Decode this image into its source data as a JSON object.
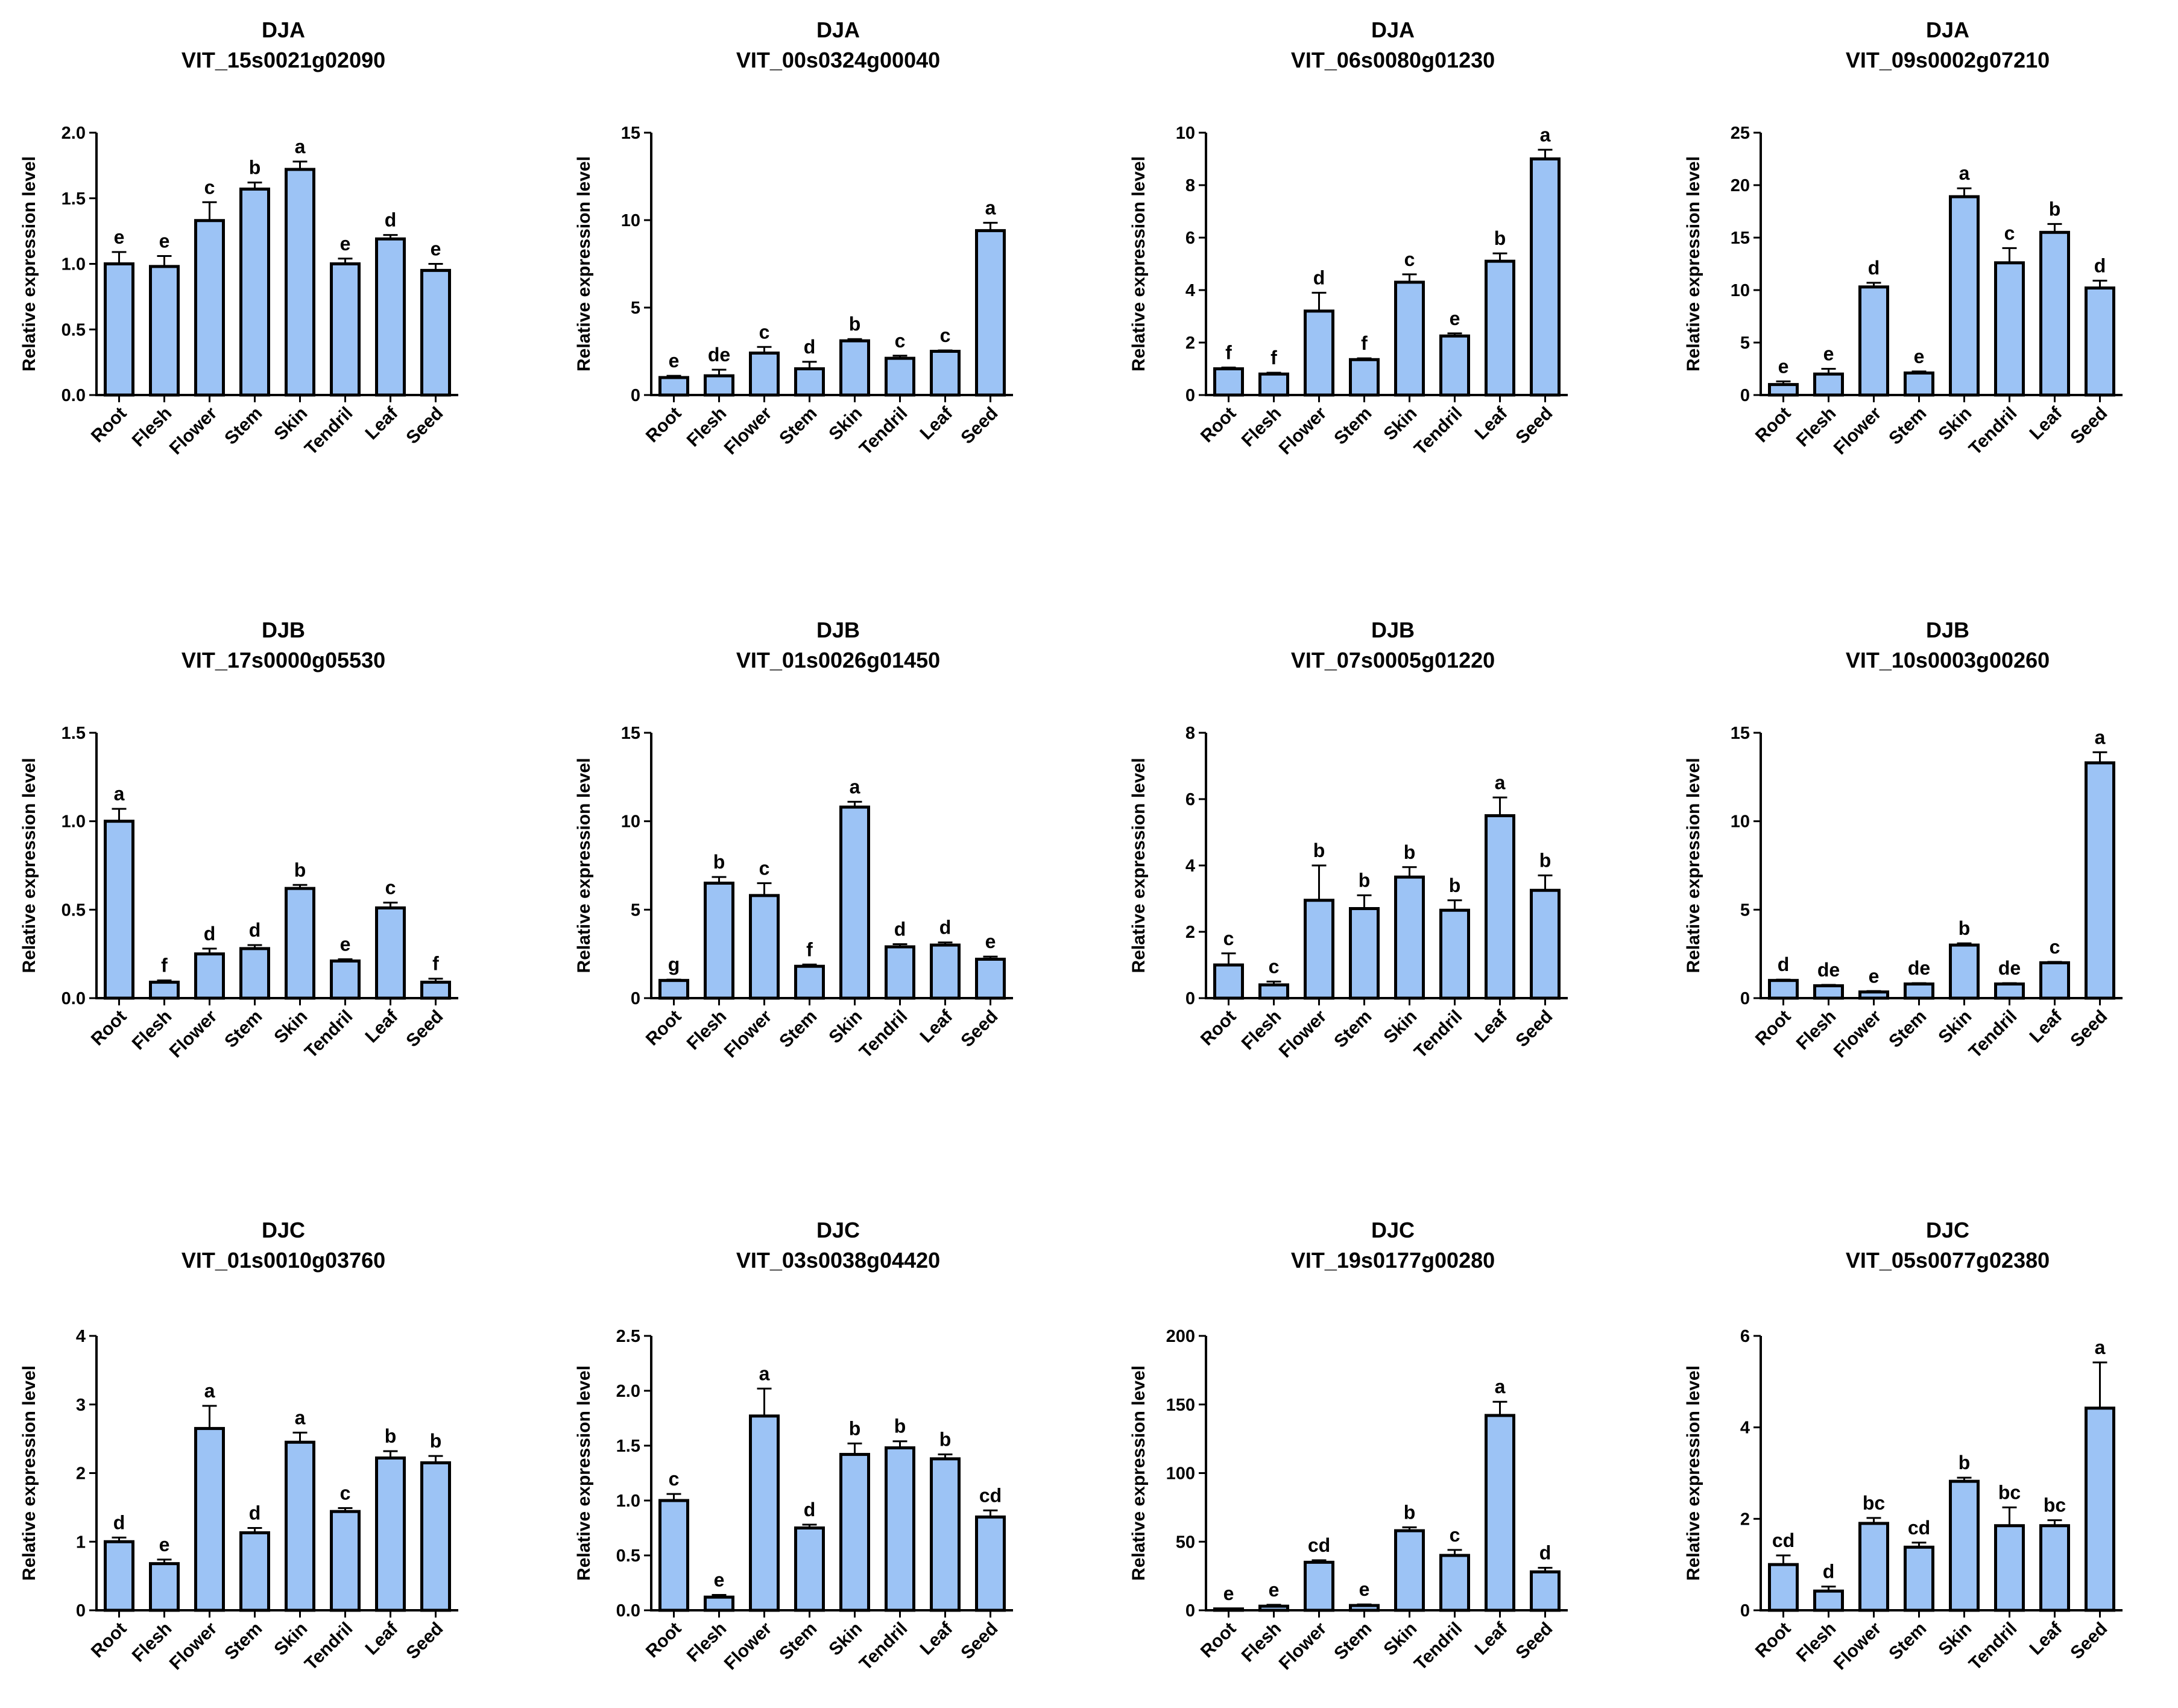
{
  "figure": {
    "ylabel": "Relative expression level",
    "categories": [
      "Root",
      "Flesh",
      "Flower",
      "Stem",
      "Skin",
      "Tendril",
      "Leaf",
      "Seed"
    ],
    "colors": {
      "bar": "#9cc3f5",
      "outline": "#000000"
    }
  },
  "chart_data": [
    {
      "type": "bar",
      "title": "DJA",
      "subtitle": "VIT_15s0021g02090",
      "ylabel": "Relative expression level",
      "ylim": [
        0,
        2.0
      ],
      "yticks": [
        "0.0",
        "0.5",
        "1.0",
        "1.5",
        "2.0"
      ],
      "ytick_values": [
        0,
        0.5,
        1.0,
        1.5,
        2.0
      ],
      "categories": [
        "Root",
        "Flesh",
        "Flower",
        "Stem",
        "Skin",
        "Tendril",
        "Leaf",
        "Seed"
      ],
      "values": [
        1.0,
        0.98,
        1.33,
        1.57,
        1.72,
        1.0,
        1.19,
        0.95
      ],
      "errors": [
        0.09,
        0.08,
        0.14,
        0.05,
        0.06,
        0.04,
        0.03,
        0.05
      ],
      "labels": [
        "e",
        "e",
        "c",
        "b",
        "a",
        "e",
        "d",
        "e"
      ]
    },
    {
      "type": "bar",
      "title": "DJA",
      "subtitle": "VIT_00s0324g00040",
      "ylabel": "Relative expression level",
      "ylim": [
        0,
        15
      ],
      "yticks": [
        "0",
        "5",
        "10",
        "15"
      ],
      "ytick_values": [
        0,
        5,
        10,
        15
      ],
      "categories": [
        "Root",
        "Flesh",
        "Flower",
        "Stem",
        "Skin",
        "Tendril",
        "Leaf",
        "Seed"
      ],
      "values": [
        1.0,
        1.1,
        2.4,
        1.5,
        3.1,
        2.1,
        2.5,
        9.4
      ],
      "errors": [
        0.1,
        0.35,
        0.35,
        0.4,
        0.1,
        0.15,
        0.05,
        0.45
      ],
      "labels": [
        "e",
        "de",
        "c",
        "d",
        "b",
        "c",
        "c",
        "a"
      ]
    },
    {
      "type": "bar",
      "title": "DJA",
      "subtitle": "VIT_06s0080g01230",
      "ylabel": "Relative expression level",
      "ylim": [
        0,
        10
      ],
      "yticks": [
        "0",
        "2",
        "4",
        "6",
        "8",
        "10"
      ],
      "ytick_values": [
        0,
        2,
        4,
        6,
        8,
        10
      ],
      "categories": [
        "Root",
        "Flesh",
        "Flower",
        "Stem",
        "Skin",
        "Tendril",
        "Leaf",
        "Seed"
      ],
      "values": [
        1.0,
        0.8,
        3.2,
        1.35,
        4.3,
        2.25,
        5.1,
        9.0
      ],
      "errors": [
        0.05,
        0.05,
        0.7,
        0.05,
        0.3,
        0.1,
        0.3,
        0.35
      ],
      "labels": [
        "f",
        "f",
        "d",
        "f",
        "c",
        "e",
        "b",
        "a"
      ]
    },
    {
      "type": "bar",
      "title": "DJA",
      "subtitle": "VIT_09s0002g07210",
      "ylabel": "Relative expression level",
      "ylim": [
        0,
        25
      ],
      "yticks": [
        "0",
        "5",
        "10",
        "15",
        "20",
        "25"
      ],
      "ytick_values": [
        0,
        5,
        10,
        15,
        20,
        25
      ],
      "categories": [
        "Root",
        "Flesh",
        "Flower",
        "Stem",
        "Skin",
        "Tendril",
        "Leaf",
        "Seed"
      ],
      "values": [
        1.0,
        2.0,
        10.3,
        2.1,
        18.9,
        12.6,
        15.5,
        10.2
      ],
      "errors": [
        0.3,
        0.5,
        0.4,
        0.15,
        0.8,
        1.4,
        0.8,
        0.7
      ],
      "labels": [
        "e",
        "e",
        "d",
        "e",
        "a",
        "c",
        "b",
        "d"
      ]
    },
    {
      "type": "bar",
      "title": "DJB",
      "subtitle": "VIT_17s0000g05530",
      "ylabel": "Relative expression level",
      "ylim": [
        0,
        1.5
      ],
      "yticks": [
        "0.0",
        "0.5",
        "1.0",
        "1.5"
      ],
      "ytick_values": [
        0,
        0.5,
        1.0,
        1.5
      ],
      "categories": [
        "Root",
        "Flesh",
        "Flower",
        "Stem",
        "Skin",
        "Tendril",
        "Leaf",
        "Seed"
      ],
      "values": [
        1.0,
        0.09,
        0.25,
        0.28,
        0.62,
        0.21,
        0.51,
        0.09
      ],
      "errors": [
        0.07,
        0.01,
        0.03,
        0.02,
        0.02,
        0.01,
        0.03,
        0.02
      ],
      "labels": [
        "a",
        "f",
        "d",
        "d",
        "b",
        "e",
        "c",
        "f"
      ]
    },
    {
      "type": "bar",
      "title": "DJB",
      "subtitle": "VIT_01s0026g01450",
      "ylabel": "Relative expression level",
      "ylim": [
        0,
        15
      ],
      "yticks": [
        "0",
        "5",
        "10",
        "15"
      ],
      "ytick_values": [
        0,
        5,
        10,
        15
      ],
      "categories": [
        "Root",
        "Flesh",
        "Flower",
        "Stem",
        "Skin",
        "Tendril",
        "Leaf",
        "Seed"
      ],
      "values": [
        1.0,
        6.5,
        5.8,
        1.8,
        10.8,
        2.9,
        3.0,
        2.2
      ],
      "errors": [
        0.05,
        0.35,
        0.7,
        0.1,
        0.3,
        0.15,
        0.15,
        0.15
      ],
      "labels": [
        "g",
        "b",
        "c",
        "f",
        "a",
        "d",
        "d",
        "e"
      ]
    },
    {
      "type": "bar",
      "title": "DJB",
      "subtitle": "VIT_07s0005g01220",
      "ylabel": "Relative expression level",
      "ylim": [
        0,
        8
      ],
      "yticks": [
        "0",
        "2",
        "4",
        "6",
        "8"
      ],
      "ytick_values": [
        0,
        2,
        4,
        6,
        8
      ],
      "categories": [
        "Root",
        "Flesh",
        "Flower",
        "Stem",
        "Skin",
        "Tendril",
        "Leaf",
        "Seed"
      ],
      "values": [
        1.0,
        0.4,
        2.95,
        2.7,
        3.65,
        2.65,
        5.5,
        3.25
      ],
      "errors": [
        0.35,
        0.1,
        1.05,
        0.4,
        0.3,
        0.3,
        0.55,
        0.45
      ],
      "labels": [
        "c",
        "c",
        "b",
        "b",
        "b",
        "b",
        "a",
        "b"
      ]
    },
    {
      "type": "bar",
      "title": "DJB",
      "subtitle": "VIT_10s0003g00260",
      "ylabel": "Relative expression level",
      "ylim": [
        0,
        15
      ],
      "yticks": [
        "0",
        "5",
        "10",
        "15"
      ],
      "ytick_values": [
        0,
        5,
        10,
        15
      ],
      "categories": [
        "Root",
        "Flesh",
        "Flower",
        "Stem",
        "Skin",
        "Tendril",
        "Leaf",
        "Seed"
      ],
      "values": [
        1.0,
        0.7,
        0.35,
        0.8,
        3.0,
        0.8,
        2.0,
        13.3
      ],
      "errors": [
        0.05,
        0.05,
        0.05,
        0.05,
        0.1,
        0.05,
        0.05,
        0.6
      ],
      "labels": [
        "d",
        "de",
        "e",
        "de",
        "b",
        "de",
        "c",
        "a"
      ]
    },
    {
      "type": "bar",
      "title": "DJC",
      "subtitle": "VIT_01s0010g03760",
      "ylabel": "Relative expression level",
      "ylim": [
        0,
        4
      ],
      "yticks": [
        "0",
        "1",
        "2",
        "3",
        "4"
      ],
      "ytick_values": [
        0,
        1,
        2,
        3,
        4
      ],
      "categories": [
        "Root",
        "Flesh",
        "Flower",
        "Stem",
        "Skin",
        "Tendril",
        "Leaf",
        "Seed"
      ],
      "values": [
        1.0,
        0.68,
        2.65,
        1.13,
        2.45,
        1.44,
        2.22,
        2.15
      ],
      "errors": [
        0.06,
        0.06,
        0.33,
        0.07,
        0.14,
        0.05,
        0.1,
        0.1
      ],
      "labels": [
        "d",
        "e",
        "a",
        "d",
        "a",
        "c",
        "b",
        "b"
      ]
    },
    {
      "type": "bar",
      "title": "DJC",
      "subtitle": "VIT_03s0038g04420",
      "ylabel": "Relative expression level",
      "ylim": [
        0,
        2.5
      ],
      "yticks": [
        "0.0",
        "0.5",
        "1.0",
        "1.5",
        "2.0",
        "2.5"
      ],
      "ytick_values": [
        0,
        0.5,
        1.0,
        1.5,
        2.0,
        2.5
      ],
      "categories": [
        "Root",
        "Flesh",
        "Flower",
        "Stem",
        "Skin",
        "Tendril",
        "Leaf",
        "Seed"
      ],
      "values": [
        1.0,
        0.12,
        1.77,
        0.75,
        1.42,
        1.48,
        1.38,
        0.85
      ],
      "errors": [
        0.06,
        0.02,
        0.25,
        0.03,
        0.1,
        0.06,
        0.04,
        0.06
      ],
      "labels": [
        "c",
        "e",
        "a",
        "d",
        "b",
        "b",
        "b",
        "cd"
      ]
    },
    {
      "type": "bar",
      "title": "DJC",
      "subtitle": "VIT_19s0177g00280",
      "ylabel": "Relative expression level",
      "ylim": [
        0,
        200
      ],
      "yticks": [
        "0",
        "50",
        "100",
        "150",
        "200"
      ],
      "ytick_values": [
        0,
        50,
        100,
        150,
        200
      ],
      "categories": [
        "Root",
        "Flesh",
        "Flower",
        "Stem",
        "Skin",
        "Tendril",
        "Leaf",
        "Seed"
      ],
      "values": [
        1.0,
        3.0,
        35.0,
        3.5,
        58.0,
        40.0,
        142.0,
        28.0
      ],
      "errors": [
        0.3,
        1.0,
        1.5,
        0.8,
        2.5,
        4.0,
        10.0,
        3.0
      ],
      "labels": [
        "e",
        "e",
        "cd",
        "e",
        "b",
        "c",
        "a",
        "d"
      ]
    },
    {
      "type": "bar",
      "title": "DJC",
      "subtitle": "VIT_05s0077g02380",
      "ylabel": "Relative expression level",
      "ylim": [
        0,
        6
      ],
      "yticks": [
        "0",
        "2",
        "4",
        "6"
      ],
      "ytick_values": [
        0,
        2,
        4,
        6
      ],
      "categories": [
        "Root",
        "Flesh",
        "Flower",
        "Stem",
        "Skin",
        "Tendril",
        "Leaf",
        "Seed"
      ],
      "values": [
        1.0,
        0.42,
        1.9,
        1.38,
        2.82,
        1.85,
        1.85,
        4.42
      ],
      "errors": [
        0.2,
        0.1,
        0.12,
        0.1,
        0.08,
        0.4,
        0.12,
        1.0
      ],
      "labels": [
        "cd",
        "d",
        "bc",
        "cd",
        "b",
        "bc",
        "bc",
        "a"
      ]
    }
  ]
}
